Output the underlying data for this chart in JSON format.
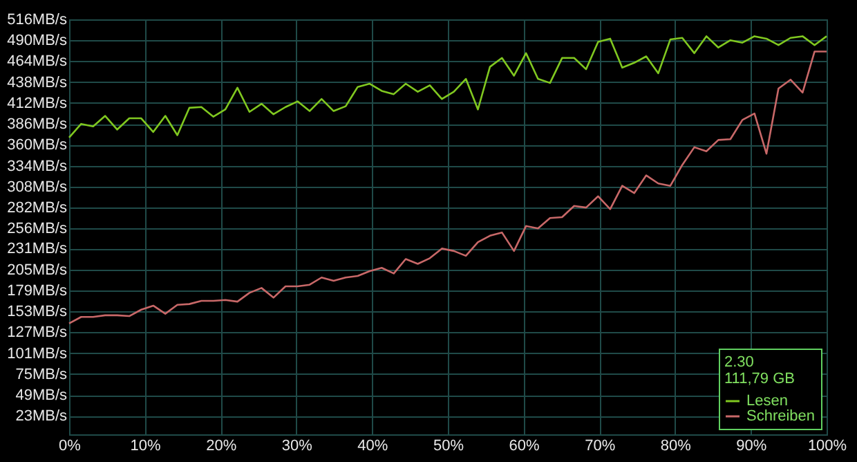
{
  "chart_data": {
    "type": "line",
    "x": [
      0,
      1.59,
      3.17,
      4.76,
      6.35,
      7.94,
      9.52,
      11.11,
      12.7,
      14.29,
      15.87,
      17.46,
      19.05,
      20.63,
      22.22,
      23.81,
      25.4,
      26.98,
      28.57,
      30.16,
      31.75,
      33.33,
      34.92,
      36.51,
      38.1,
      39.68,
      41.27,
      42.86,
      44.44,
      46.03,
      47.62,
      49.21,
      50.79,
      52.38,
      53.97,
      55.56,
      57.14,
      58.73,
      60.32,
      61.9,
      63.49,
      65.08,
      66.67,
      68.25,
      69.84,
      71.43,
      73.02,
      74.6,
      76.19,
      77.78,
      79.37,
      80.95,
      82.54,
      84.13,
      85.71,
      87.3,
      88.89,
      90.48,
      92.06,
      93.65,
      95.24,
      96.83,
      98.41,
      100
    ],
    "series": [
      {
        "name": "Lesen",
        "color": "#80c820",
        "values": [
          369,
          386,
          383,
          396,
          379,
          393,
          393,
          376,
          396,
          372,
          406,
          407,
          395,
          404,
          431,
          401,
          411,
          398,
          407,
          414,
          402,
          417,
          402,
          408,
          432,
          436,
          427,
          423,
          436,
          426,
          434,
          417,
          426,
          442,
          404,
          457,
          468,
          446,
          474,
          442,
          437,
          468,
          468,
          454,
          488,
          492,
          456,
          462,
          470,
          449,
          491,
          493,
          474,
          495,
          481,
          490,
          487,
          495,
          492,
          484,
          493,
          495,
          484,
          495
        ]
      },
      {
        "name": "Schreiben",
        "color": "#c86868",
        "values": [
          138,
          146,
          146,
          148,
          148,
          147,
          155,
          160,
          150,
          161,
          162,
          166,
          166,
          167,
          165,
          176,
          182,
          170,
          184,
          184,
          186,
          195,
          191,
          195,
          197,
          203,
          207,
          200,
          218,
          212,
          219,
          231,
          228,
          222,
          239,
          247,
          251,
          228,
          259,
          256,
          269,
          270,
          284,
          282,
          296,
          280,
          309,
          300,
          322,
          312,
          309,
          335,
          357,
          352,
          366,
          367,
          391,
          399,
          349,
          430,
          441,
          425,
          476,
          476
        ]
      }
    ],
    "xlim": [
      0,
      100
    ],
    "xticks": [
      {
        "value": 0,
        "label": "0%"
      },
      {
        "value": 10,
        "label": "10%"
      },
      {
        "value": 20,
        "label": "20%"
      },
      {
        "value": 30,
        "label": "30%"
      },
      {
        "value": 40,
        "label": "40%"
      },
      {
        "value": 50,
        "label": "50%"
      },
      {
        "value": 60,
        "label": "60%"
      },
      {
        "value": 70,
        "label": "70%"
      },
      {
        "value": 80,
        "label": "80%"
      },
      {
        "value": 90,
        "label": "90%"
      },
      {
        "value": 100,
        "label": "100%"
      }
    ],
    "ylim": [
      0,
      516
    ],
    "yticks": [
      {
        "value": 23,
        "label": "23MB/s"
      },
      {
        "value": 49,
        "label": "49MB/s"
      },
      {
        "value": 75,
        "label": "75MB/s"
      },
      {
        "value": 101,
        "label": "101MB/s"
      },
      {
        "value": 127,
        "label": "127MB/s"
      },
      {
        "value": 153,
        "label": "153MB/s"
      },
      {
        "value": 179,
        "label": "179MB/s"
      },
      {
        "value": 205,
        "label": "205MB/s"
      },
      {
        "value": 231,
        "label": "231MB/s"
      },
      {
        "value": 256,
        "label": "256MB/s"
      },
      {
        "value": 282,
        "label": "282MB/s"
      },
      {
        "value": 308,
        "label": "308MB/s"
      },
      {
        "value": 334,
        "label": "334MB/s"
      },
      {
        "value": 360,
        "label": "360MB/s"
      },
      {
        "value": 386,
        "label": "386MB/s"
      },
      {
        "value": 412,
        "label": "412MB/s"
      },
      {
        "value": 438,
        "label": "438MB/s"
      },
      {
        "value": 464,
        "label": "464MB/s"
      },
      {
        "value": 490,
        "label": "490MB/s"
      },
      {
        "value": 516,
        "label": "516MB/s"
      }
    ],
    "annotations": [
      "2.30",
      "111,79 GB"
    ],
    "grid": true,
    "legend": "bottom right",
    "marker": "none",
    "line_style": "solid"
  }
}
